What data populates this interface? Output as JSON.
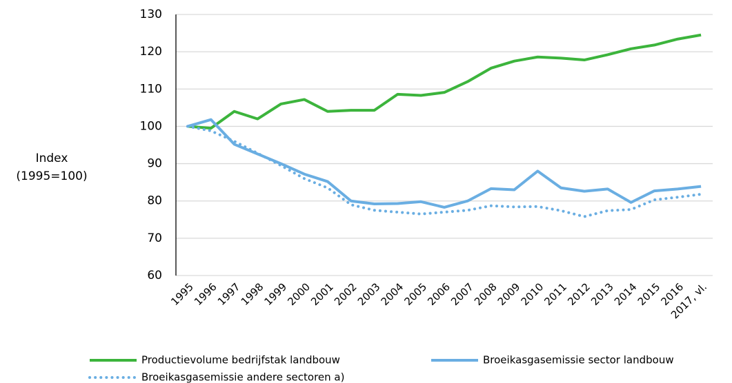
{
  "chart_data": {
    "type": "line",
    "y_label": [
      "Index",
      "(1995=100)"
    ],
    "categories": [
      "1995",
      "1996",
      "1997",
      "1998",
      "1999",
      "2000",
      "2001",
      "2002",
      "2003",
      "2004",
      "2005",
      "2006",
      "2007",
      "2008",
      "2009",
      "2010",
      "2011",
      "2012",
      "2013",
      "2014",
      "2015",
      "2016",
      "2017, vl."
    ],
    "series": [
      {
        "name": "Productievolume bedrijfstak landbouw",
        "color": "#3cb43c",
        "dash": "solid",
        "values": [
          100,
          99.5,
          104,
          102,
          106,
          107.2,
          104,
          104.3,
          104.3,
          108.6,
          108.3,
          109.1,
          112,
          115.6,
          117.5,
          118.6,
          118.3,
          117.8,
          119.2,
          120.8,
          121.8,
          123.4,
          124.5
        ]
      },
      {
        "name": "Broeikasgasemissie sector landbouw",
        "color": "#6aaee2",
        "dash": "solid",
        "values": [
          100,
          101.8,
          95.2,
          92.6,
          90,
          87.2,
          85.2,
          80,
          79.2,
          79.3,
          79.8,
          78.3,
          80,
          83.3,
          83,
          88,
          83.5,
          82.6,
          83.2,
          79.6,
          82.7,
          83.2,
          83.9
        ]
      },
      {
        "name": "Broeikasgasemissie andere sectoren a)",
        "color": "#6aaee2",
        "dash": "dotted",
        "values": [
          100,
          98.8,
          96,
          92.8,
          89.5,
          86,
          83.5,
          79,
          77.5,
          77,
          76.5,
          77,
          77.5,
          78.7,
          78.4,
          78.5,
          77.4,
          75.8,
          77.4,
          77.7,
          80.3,
          81,
          81.8
        ]
      }
    ],
    "ylim": [
      60,
      130
    ],
    "yticks": [
      60,
      70,
      80,
      90,
      100,
      110,
      120,
      130
    ],
    "grid": true
  }
}
